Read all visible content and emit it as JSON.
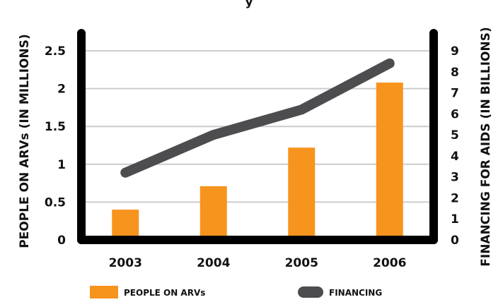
{
  "chart_data": {
    "type": "bar",
    "categories": [
      "2003",
      "2004",
      "2005",
      "2006"
    ],
    "series": [
      {
        "name": "PEOPLE ON ARVs",
        "type": "bar",
        "axis": "left",
        "color": "#F7941D",
        "values": [
          0.4,
          0.71,
          1.22,
          2.08
        ]
      },
      {
        "name": "FINANCING",
        "type": "line",
        "axis": "right",
        "color": "#4D4D4F",
        "values": [
          3.2,
          5.0,
          6.2,
          8.4
        ]
      }
    ],
    "ylabel": "PEOPLE ON ARVs (IN MILLIONS)",
    "y2label": "FINANCING FOR AIDS (IN BILLIONS)",
    "ylim": [
      0,
      2.5
    ],
    "y2lim": [
      0,
      9
    ],
    "yticks": [
      "0",
      "0.5",
      "1",
      "1.5",
      "2",
      "2.5"
    ],
    "y2ticks": [
      "0",
      "1",
      "2",
      "3",
      "4",
      "5",
      "6",
      "7",
      "8",
      "9"
    ],
    "grid": true,
    "legend": "bottom"
  },
  "top_fragment": "y"
}
